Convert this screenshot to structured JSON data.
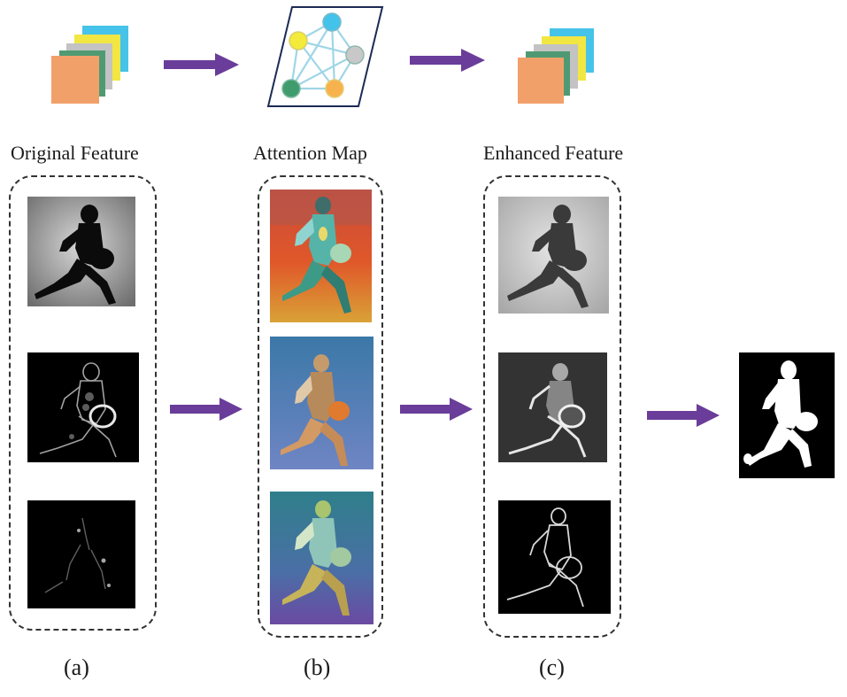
{
  "columns": {
    "original": {
      "title": "Original Feature",
      "panel_label": "(a)"
    },
    "attention": {
      "title": "Attention Map",
      "panel_label": "(b)"
    },
    "enhanced": {
      "title": "Enhanced Feature",
      "panel_label": "(c)"
    }
  },
  "colors": {
    "arrow": "#6a3d9a",
    "stack": [
      "#f2a06a",
      "#4f9a72",
      "#c0c0c0",
      "#f2e643",
      "#46c3e8"
    ],
    "graph_nodes": [
      "#44c3ea",
      "#f3ea3a",
      "#c8c8c8",
      "#3f9c6d",
      "#f7b24e"
    ],
    "graph_edges": "#9fd6e6",
    "box_border": "#333333"
  },
  "icons": {
    "stack_in": "feature-stack-icon",
    "graph": "graph-attention-icon",
    "stack_out": "feature-stack-icon",
    "arrow": "arrow-right-icon"
  }
}
